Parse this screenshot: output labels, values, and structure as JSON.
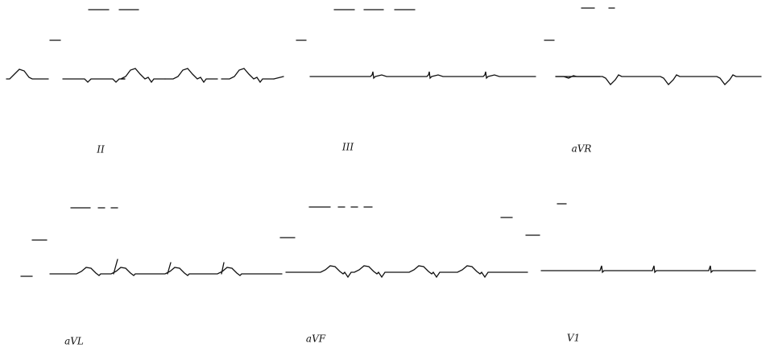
{
  "leads": [
    {
      "label": "II"
    },
    {
      "label": "III"
    },
    {
      "label": "aVR"
    },
    {
      "label": "aVL"
    },
    {
      "label": "aVF"
    },
    {
      "label": "V1"
    }
  ]
}
